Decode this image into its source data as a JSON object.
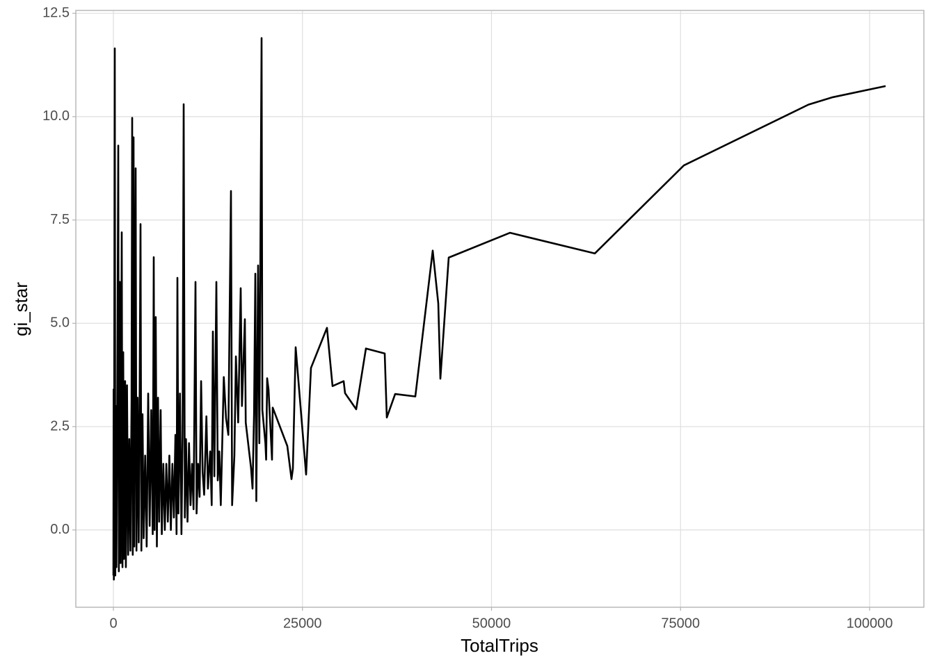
{
  "chart_data": {
    "type": "line",
    "xlabel": "TotalTrips",
    "ylabel": "gi_star",
    "color": "#000000",
    "xlim": [
      -4968,
      107176
    ],
    "ylim": [
      -1.87,
      12.57
    ],
    "xticks": [
      0,
      25000,
      50000,
      75000,
      100000
    ],
    "yticks": [
      {
        "value": 0,
        "label": "0.0"
      },
      2.5,
      {
        "value": 5,
        "label": "5.0"
      },
      7.5,
      {
        "value": 10,
        "label": "10.0"
      },
      12.5
    ],
    "grid": true,
    "x": [
      0,
      30,
      60,
      100,
      184,
      250,
      320,
      400,
      500,
      644,
      720,
      850,
      950,
      1104,
      1200,
      1300,
      1400,
      1550,
      1650,
      1800,
      1950,
      2100,
      2250,
      2400,
      2484,
      2560,
      2668,
      2760,
      2944,
      3050,
      3200,
      3350,
      3450,
      3588,
      3700,
      3850,
      4000,
      4200,
      4400,
      4600,
      4800,
      5000,
      5200,
      5336,
      5450,
      5600,
      5750,
      5900,
      6050,
      6250,
      6400,
      6600,
      6800,
      7000,
      7200,
      7400,
      7600,
      7800,
      8000,
      8200,
      8350,
      8464,
      8600,
      8800,
      9000,
      9150,
      9293,
      9450,
      9600,
      9800,
      10000,
      10200,
      10400,
      10600,
      10856,
      11000,
      11200,
      11400,
      11600,
      11800,
      12000,
      12300,
      12500,
      12800,
      13000,
      13156,
      13350,
      13616,
      13800,
      14000,
      14200,
      14600,
      14900,
      15200,
      15547,
      15700,
      16000,
      16200,
      16500,
      16835,
      17000,
      17387,
      17500,
      18200,
      18400,
      18600,
      18767,
      18900,
      19135,
      19300,
      19595,
      19700,
      20100,
      20200,
      20331,
      20515,
      20975,
      21067,
      23000,
      23551,
      23735,
      24103,
      25483,
      26127,
      28243,
      28979,
      30451,
      30635,
      32107,
      33395,
      35879,
      36155,
      37259,
      39926,
      42226,
      42962,
      43238,
      44342,
      52438,
      63661,
      75437,
      91904,
      95124,
      102116
    ],
    "values": [
      -1.1,
      3.4,
      -1.2,
      1.6,
      11.65,
      -1.1,
      3.0,
      -0.9,
      2.6,
      9.3,
      -1.0,
      6.0,
      -0.8,
      7.2,
      -0.9,
      4.3,
      -0.7,
      3.6,
      -0.9,
      3.5,
      -0.6,
      2.2,
      -0.5,
      3.1,
      9.97,
      -0.6,
      9.5,
      -0.4,
      8.75,
      -0.5,
      3.2,
      -0.3,
      2.5,
      7.4,
      -0.5,
      2.8,
      -0.2,
      1.8,
      -0.4,
      3.3,
      0.1,
      2.9,
      -0.1,
      6.6,
      0.0,
      5.15,
      -0.4,
      3.2,
      0.2,
      2.9,
      -0.1,
      1.6,
      0.0,
      1.6,
      0.2,
      1.8,
      0.0,
      1.6,
      0.3,
      2.3,
      -0.1,
      6.1,
      0.4,
      3.3,
      -0.1,
      2.3,
      10.3,
      0.3,
      2.2,
      0.2,
      2.1,
      0.6,
      1.6,
      0.5,
      6.0,
      0.4,
      1.6,
      0.8,
      3.6,
      1.4,
      0.85,
      2.75,
      1.0,
      1.9,
      0.6,
      4.8,
      1.3,
      6.0,
      1.2,
      1.9,
      0.6,
      3.7,
      2.7,
      2.3,
      8.2,
      0.6,
      1.8,
      4.2,
      2.6,
      5.85,
      3.0,
      5.1,
      2.6,
      1.5,
      1.0,
      2.8,
      6.2,
      0.7,
      6.4,
      2.1,
      11.9,
      2.9,
      2.1,
      1.7,
      3.67,
      3.4,
      1.7,
      2.96,
      2.03,
      1.23,
      1.48,
      4.42,
      1.34,
      3.92,
      4.89,
      3.48,
      3.6,
      3.31,
      2.92,
      4.39,
      4.27,
      2.72,
      3.29,
      3.23,
      6.76,
      5.48,
      3.66,
      6.59,
      7.19,
      6.69,
      8.82,
      10.29,
      10.47,
      10.74
    ]
  }
}
